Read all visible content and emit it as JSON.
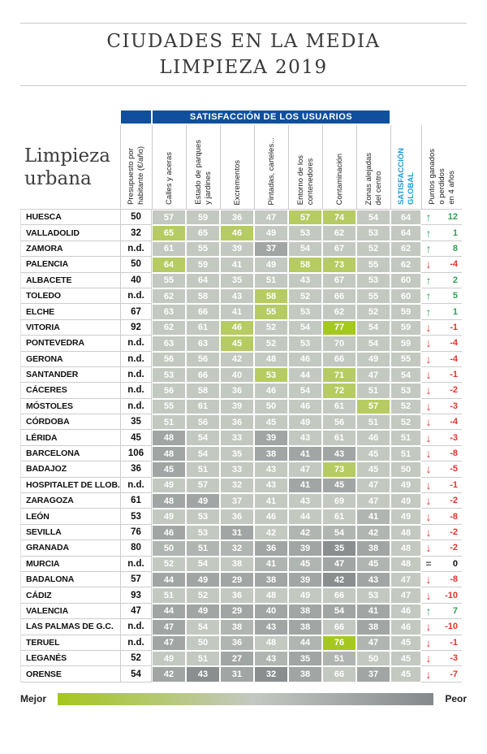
{
  "title": {
    "line1": "CIUDADES EN LA MEDIA",
    "line2": "LIMPIEZA 2019"
  },
  "section_label": "Limpieza\nurbana",
  "band_header": "SATISFACCIÓN DE LOS USUARIOS",
  "columns": {
    "budget": "Presupuesto por\nhabitante (€/año)",
    "satisfaction": [
      "Calles y aceras",
      "Estado de parques\ny jardines",
      "Excrementos",
      "Pintadas, carteles...",
      "Entorno de los\ncontenedores",
      "Contaminación",
      "Zonas alejadas\ndel centro"
    ],
    "global": "SATISFACCIÓN\nGLOBAL",
    "change": "Puntos ganados\no perdidos\nen 4 años"
  },
  "legend": {
    "best": "Mejor",
    "worst": "Peor",
    "gradient": [
      "#a4c71d",
      "#c4c8c2",
      "#85898c"
    ]
  },
  "colors": {
    "band_blue": "#0f4f9d",
    "global_header_blue": "#1c9cd9",
    "up_green": "#2ca05a",
    "down_red": "#e3342c",
    "equal_gray": "#555555",
    "global_tile_tone": "b",
    "palette": {
      "g2": "#a5c821",
      "g1": "#b6cb61",
      "b": "#c3c8c0",
      "m1": "#b1b5b1",
      "m2": "#a1a5a3",
      "d": "#8a8e8f"
    }
  },
  "chart_data": {
    "type": "table",
    "title": "CIUDADES EN LA MEDIA LIMPIEZA 2019",
    "value_columns": [
      "Presupuesto por habitante (€/año)",
      "Calles y aceras",
      "Estado de parques y jardines",
      "Excrementos",
      "Pintadas, carteles...",
      "Entorno de los contenedores",
      "Contaminación",
      "Zonas alejadas del centro",
      "SATISFACCIÓN GLOBAL",
      "Puntos ganados o perdidos en 4 años"
    ],
    "rows": [
      {
        "city": "HUESCA",
        "budget": "50",
        "values": [
          57,
          59,
          36,
          47,
          57,
          74,
          54
        ],
        "tones": [
          "b",
          "b",
          "b",
          "b",
          "g1",
          "g1",
          "b"
        ],
        "global": 64,
        "trend": "up",
        "change": "12"
      },
      {
        "city": "VALLADOLID",
        "budget": "32",
        "values": [
          65,
          65,
          46,
          49,
          53,
          62,
          53
        ],
        "tones": [
          "g1",
          "b",
          "g1",
          "b",
          "b",
          "b",
          "b"
        ],
        "global": 64,
        "trend": "up",
        "change": "1"
      },
      {
        "city": "ZAMORA",
        "budget": "n.d.",
        "values": [
          61,
          55,
          39,
          37,
          54,
          67,
          52
        ],
        "tones": [
          "b",
          "b",
          "b",
          "m2",
          "b",
          "b",
          "b"
        ],
        "global": 62,
        "trend": "up",
        "change": "8"
      },
      {
        "city": "PALENCIA",
        "budget": "50",
        "values": [
          64,
          59,
          41,
          49,
          58,
          73,
          55
        ],
        "tones": [
          "g1",
          "b",
          "b",
          "b",
          "g1",
          "g1",
          "b"
        ],
        "global": 62,
        "trend": "down",
        "change": "-4"
      },
      {
        "city": "ALBACETE",
        "budget": "40",
        "values": [
          55,
          64,
          35,
          51,
          43,
          67,
          53
        ],
        "tones": [
          "b",
          "b",
          "b",
          "b",
          "b",
          "b",
          "b"
        ],
        "global": 60,
        "trend": "up",
        "change": "2"
      },
      {
        "city": "TOLEDO",
        "budget": "n.d.",
        "values": [
          62,
          58,
          43,
          58,
          52,
          66,
          55
        ],
        "tones": [
          "b",
          "b",
          "b",
          "g1",
          "b",
          "b",
          "b"
        ],
        "global": 60,
        "trend": "up",
        "change": "5"
      },
      {
        "city": "ELCHE",
        "budget": "67",
        "values": [
          63,
          66,
          41,
          55,
          53,
          62,
          52
        ],
        "tones": [
          "b",
          "b",
          "b",
          "g1",
          "b",
          "b",
          "b"
        ],
        "global": 59,
        "trend": "up",
        "change": "1"
      },
      {
        "city": "VITORIA",
        "budget": "92",
        "values": [
          62,
          61,
          46,
          52,
          54,
          77,
          54
        ],
        "tones": [
          "b",
          "b",
          "g1",
          "b",
          "b",
          "g2",
          "b"
        ],
        "global": 59,
        "trend": "down",
        "change": "-1"
      },
      {
        "city": "PONTEVEDRA",
        "budget": "n.d.",
        "values": [
          63,
          63,
          45,
          52,
          53,
          70,
          54
        ],
        "tones": [
          "b",
          "b",
          "g1",
          "b",
          "b",
          "b",
          "b"
        ],
        "global": 59,
        "trend": "down",
        "change": "-4"
      },
      {
        "city": "GERONA",
        "budget": "n.d.",
        "values": [
          56,
          56,
          42,
          48,
          46,
          66,
          49
        ],
        "tones": [
          "b",
          "b",
          "b",
          "b",
          "b",
          "b",
          "b"
        ],
        "global": 55,
        "trend": "down",
        "change": "-4"
      },
      {
        "city": "SANTANDER",
        "budget": "n.d.",
        "values": [
          53,
          66,
          40,
          53,
          44,
          71,
          47
        ],
        "tones": [
          "b",
          "b",
          "b",
          "g1",
          "b",
          "g1",
          "b"
        ],
        "global": 54,
        "trend": "down",
        "change": "-1"
      },
      {
        "city": "CÁCERES",
        "budget": "n.d.",
        "values": [
          56,
          58,
          36,
          46,
          54,
          72,
          51
        ],
        "tones": [
          "b",
          "b",
          "b",
          "b",
          "b",
          "g1",
          "b"
        ],
        "global": 53,
        "trend": "down",
        "change": "-2"
      },
      {
        "city": "MÓSTOLES",
        "budget": "n.d.",
        "values": [
          55,
          61,
          39,
          50,
          46,
          61,
          57
        ],
        "tones": [
          "b",
          "b",
          "b",
          "b",
          "b",
          "b",
          "g1"
        ],
        "global": 52,
        "trend": "down",
        "change": "-3"
      },
      {
        "city": "CÓRDOBA",
        "budget": "35",
        "values": [
          51,
          56,
          36,
          45,
          49,
          56,
          51
        ],
        "tones": [
          "b",
          "b",
          "b",
          "b",
          "b",
          "b",
          "b"
        ],
        "global": 52,
        "trend": "down",
        "change": "-4"
      },
      {
        "city": "LÉRIDA",
        "budget": "45",
        "values": [
          48,
          54,
          33,
          39,
          43,
          61,
          46
        ],
        "tones": [
          "m2",
          "b",
          "b",
          "m2",
          "b",
          "b",
          "b"
        ],
        "global": 51,
        "trend": "down",
        "change": "-3"
      },
      {
        "city": "BARCELONA",
        "budget": "106",
        "values": [
          48,
          54,
          35,
          38,
          41,
          43,
          45
        ],
        "tones": [
          "m2",
          "b",
          "b",
          "m2",
          "m2",
          "m2",
          "b"
        ],
        "global": 51,
        "trend": "down",
        "change": "-8"
      },
      {
        "city": "BADAJOZ",
        "budget": "36",
        "values": [
          45,
          51,
          33,
          43,
          47,
          73,
          45
        ],
        "tones": [
          "m2",
          "b",
          "b",
          "b",
          "b",
          "g1",
          "b"
        ],
        "global": 50,
        "trend": "down",
        "change": "-5"
      },
      {
        "city": "HOSPITALET DE LLOB.",
        "budget": "n.d.",
        "values": [
          49,
          57,
          32,
          43,
          41,
          45,
          47
        ],
        "tones": [
          "b",
          "b",
          "b",
          "b",
          "m2",
          "m2",
          "b"
        ],
        "global": 49,
        "trend": "down",
        "change": "-1"
      },
      {
        "city": "ZARAGOZA",
        "budget": "61",
        "values": [
          48,
          49,
          37,
          41,
          43,
          69,
          47
        ],
        "tones": [
          "m2",
          "m2",
          "b",
          "b",
          "b",
          "b",
          "b"
        ],
        "global": 49,
        "trend": "down",
        "change": "-2"
      },
      {
        "city": "LEÓN",
        "budget": "53",
        "values": [
          49,
          53,
          36,
          46,
          44,
          61,
          41
        ],
        "tones": [
          "b",
          "b",
          "b",
          "b",
          "b",
          "b",
          "m1"
        ],
        "global": 49,
        "trend": "down",
        "change": "-8"
      },
      {
        "city": "SEVILLA",
        "budget": "76",
        "values": [
          46,
          53,
          31,
          42,
          42,
          54,
          42
        ],
        "tones": [
          "m2",
          "b",
          "m2",
          "b",
          "m1",
          "m1",
          "m1"
        ],
        "global": 48,
        "trend": "down",
        "change": "-2"
      },
      {
        "city": "GRANADA",
        "budget": "80",
        "values": [
          50,
          51,
          32,
          36,
          39,
          35,
          38
        ],
        "tones": [
          "m1",
          "m1",
          "m1",
          "m2",
          "m2",
          "d",
          "m2"
        ],
        "global": 48,
        "trend": "down",
        "change": "-2"
      },
      {
        "city": "MURCIA",
        "budget": "n.d.",
        "values": [
          52,
          54,
          38,
          41,
          45,
          47,
          45
        ],
        "tones": [
          "b",
          "b",
          "b",
          "m1",
          "m1",
          "m2",
          "m1"
        ],
        "global": 48,
        "trend": "equal",
        "change": "0"
      },
      {
        "city": "BADALONA",
        "budget": "57",
        "values": [
          44,
          49,
          29,
          38,
          39,
          42,
          43
        ],
        "tones": [
          "m2",
          "m2",
          "m2",
          "m2",
          "m2",
          "d",
          "m2"
        ],
        "global": 47,
        "trend": "down",
        "change": "-8"
      },
      {
        "city": "CÁDIZ",
        "budget": "93",
        "values": [
          51,
          52,
          36,
          48,
          49,
          66,
          53
        ],
        "tones": [
          "b",
          "b",
          "b",
          "b",
          "b",
          "b",
          "b"
        ],
        "global": 47,
        "trend": "down",
        "change": "-10"
      },
      {
        "city": "VALENCIA",
        "budget": "47",
        "values": [
          44,
          49,
          29,
          40,
          38,
          54,
          41
        ],
        "tones": [
          "m2",
          "m2",
          "m2",
          "m2",
          "m2",
          "m2",
          "m2"
        ],
        "global": 46,
        "trend": "up",
        "change": "7"
      },
      {
        "city": "LAS PALMAS DE G.C.",
        "budget": "n.d.",
        "values": [
          47,
          54,
          38,
          43,
          38,
          66,
          38
        ],
        "tones": [
          "m2",
          "b",
          "m1",
          "m2",
          "m2",
          "b",
          "m2"
        ],
        "global": 46,
        "trend": "down",
        "change": "-10"
      },
      {
        "city": "TERUEL",
        "budget": "n.d.",
        "values": [
          47,
          50,
          36,
          48,
          44,
          76,
          47
        ],
        "tones": [
          "m2",
          "b",
          "m1",
          "b",
          "m1",
          "g2",
          "m1"
        ],
        "global": 45,
        "trend": "down",
        "change": "-1"
      },
      {
        "city": "LEGANÉS",
        "budget": "52",
        "values": [
          49,
          51,
          27,
          43,
          35,
          51,
          50
        ],
        "tones": [
          "b",
          "b",
          "m2",
          "m1",
          "m2",
          "m1",
          "b"
        ],
        "global": 45,
        "trend": "down",
        "change": "-3"
      },
      {
        "city": "ORENSE",
        "budget": "54",
        "values": [
          42,
          43,
          31,
          32,
          38,
          66,
          37
        ],
        "tones": [
          "m2",
          "d",
          "m2",
          "d",
          "m2",
          "b",
          "m2"
        ],
        "global": 45,
        "trend": "down",
        "change": "-7"
      }
    ]
  }
}
